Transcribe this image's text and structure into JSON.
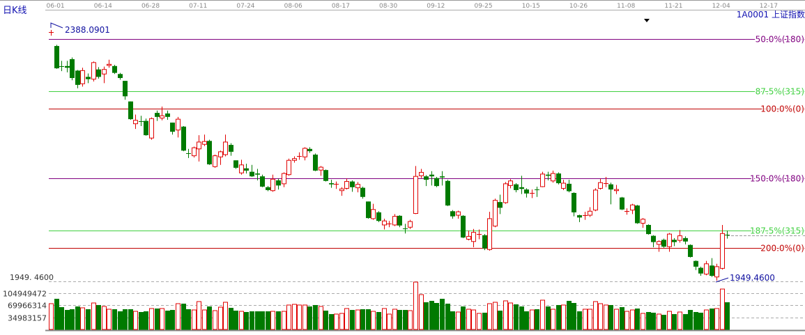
{
  "header": {
    "chart_type_label": "日K线",
    "symbol": "1A0001 上证指数"
  },
  "colors": {
    "up": "#e00000",
    "down": "#007a00",
    "fib_purple": "#800080",
    "fib_green": "#40d040",
    "fib_red": "#c00000",
    "annotation": "#1010a0",
    "axis_text": "#888888"
  },
  "chart_data": {
    "type": "candlestick",
    "x_tick_labels": [
      "06-01",
      "06-14",
      "06-28",
      "07-11",
      "07-24",
      "08-06",
      "08-17",
      "08-30",
      "09-12",
      "09-25",
      "10-15",
      "10-26",
      "11-08",
      "11-21",
      "12-04",
      "12-17"
    ],
    "price_high_label": "2388.0901",
    "price_low_label": "1949.4600",
    "left_axis_price_label": "1949. 4600",
    "volume_axis_labels": [
      "104949472",
      "69966314",
      "34983157"
    ],
    "volume_axis_values": [
      104949472,
      69966314,
      34983157
    ],
    "price_high": 2388.0901,
    "price_low": 1949.46,
    "fib_levels": [
      {
        "label": "50.0%(180)",
        "price": 2372.2,
        "color": "purple"
      },
      {
        "label": "87.5%(315)",
        "price": 2280.9,
        "color": "green"
      },
      {
        "label": "100.0%(0)",
        "price": 2250.4,
        "color": "red"
      },
      {
        "label": "150.0%(180)",
        "price": 2128.6,
        "color": "purple"
      },
      {
        "label": "187.5%(315)",
        "price": 2037.3,
        "color": "green"
      },
      {
        "label": "200.0%(0)",
        "price": 2006.8,
        "color": "red"
      }
    ],
    "ohlc_fields": [
      "open",
      "close",
      "high",
      "low"
    ],
    "candles": [
      [
        2384,
        2385,
        2388.09,
        2378
      ],
      [
        2360,
        2321,
        2362,
        2320
      ],
      [
        2325,
        2325,
        2334,
        2316
      ],
      [
        2325,
        2322,
        2334,
        2314
      ],
      [
        2337,
        2304,
        2340,
        2300
      ],
      [
        2317,
        2292,
        2318,
        2286
      ],
      [
        2294,
        2317,
        2322,
        2289
      ],
      [
        2306,
        2302,
        2312,
        2295
      ],
      [
        2302,
        2331,
        2333,
        2298
      ],
      [
        2319,
        2306,
        2323,
        2303
      ],
      [
        2311,
        2319,
        2324,
        2295
      ],
      [
        2326,
        2328,
        2336,
        2322
      ],
      [
        2325,
        2313,
        2327,
        2311
      ],
      [
        2311,
        2304,
        2313,
        2301
      ],
      [
        2299,
        2272,
        2299,
        2266
      ],
      [
        2263,
        2232,
        2263,
        2231
      ],
      [
        2224,
        2230,
        2240,
        2215
      ],
      [
        2228,
        2228,
        2238,
        2220
      ],
      [
        2229,
        2204,
        2233,
        2203
      ],
      [
        2199,
        2233,
        2235,
        2196
      ],
      [
        2243,
        2236,
        2247,
        2229
      ],
      [
        2234,
        2238,
        2254,
        2230
      ],
      [
        2242,
        2236,
        2247,
        2231
      ],
      [
        2226,
        2210,
        2226,
        2205
      ],
      [
        2213,
        2232,
        2236,
        2200
      ],
      [
        2219,
        2177,
        2220,
        2176
      ],
      [
        2172,
        2172,
        2180,
        2164
      ],
      [
        2168,
        2182,
        2184,
        2165
      ],
      [
        2180,
        2192,
        2204,
        2158
      ],
      [
        2188,
        2193,
        2205,
        2185
      ],
      [
        2194,
        2153,
        2196,
        2152
      ],
      [
        2149,
        2168,
        2170,
        2147
      ],
      [
        2166,
        2175,
        2177,
        2152
      ],
      [
        2170,
        2192,
        2205,
        2167
      ],
      [
        2187,
        2175,
        2190,
        2168
      ],
      [
        2160,
        2147,
        2160,
        2145
      ],
      [
        2138,
        2152,
        2161,
        2135
      ],
      [
        2146,
        2142,
        2154,
        2137
      ],
      [
        2140,
        2132,
        2152,
        2131
      ],
      [
        2137,
        2135,
        2145,
        2125
      ],
      [
        2132,
        2114,
        2135,
        2113
      ],
      [
        2113,
        2108,
        2115,
        2106
      ],
      [
        2107,
        2127,
        2135,
        2105
      ],
      [
        2125,
        2116,
        2128,
        2109
      ],
      [
        2119,
        2137,
        2139,
        2113
      ],
      [
        2135,
        2160,
        2163,
        2133
      ],
      [
        2160,
        2163,
        2167,
        2156
      ],
      [
        2167,
        2168,
        2174,
        2161
      ],
      [
        2166,
        2181,
        2183,
        2160
      ],
      [
        2180,
        2176,
        2183,
        2173
      ],
      [
        2170,
        2142,
        2172,
        2141
      ],
      [
        2143,
        2148,
        2150,
        2133
      ],
      [
        2143,
        2124,
        2144,
        2123
      ],
      [
        2120,
        2118,
        2126,
        2112
      ],
      [
        2118,
        2119,
        2123,
        2110
      ],
      [
        2107,
        2110,
        2113,
        2098
      ],
      [
        2111,
        2123,
        2128,
        2109
      ],
      [
        2123,
        2113,
        2125,
        2105
      ],
      [
        2112,
        2118,
        2122,
        2104
      ],
      [
        2112,
        2096,
        2114,
        2093
      ],
      [
        2088,
        2059,
        2088,
        2058
      ],
      [
        2058,
        2074,
        2084,
        2056
      ],
      [
        2069,
        2054,
        2071,
        2052
      ],
      [
        2047,
        2054,
        2058,
        2039
      ],
      [
        2048,
        2049,
        2054,
        2043
      ],
      [
        2047,
        2062,
        2066,
        2045
      ],
      [
        2063,
        2046,
        2064,
        2043
      ],
      [
        2041,
        2041,
        2049,
        2032
      ],
      [
        2043,
        2053,
        2056,
        2040
      ],
      [
        2067,
        2132,
        2150,
        2066
      ],
      [
        2133,
        2139,
        2145,
        2129
      ],
      [
        2132,
        2126,
        2134,
        2115
      ],
      [
        2135,
        2132,
        2141,
        2116
      ],
      [
        2129,
        2115,
        2131,
        2113
      ],
      [
        2132,
        2130,
        2141,
        2116
      ],
      [
        2124,
        2081,
        2126,
        2080
      ],
      [
        2071,
        2062,
        2073,
        2058
      ],
      [
        2064,
        2070,
        2072,
        2058
      ],
      [
        2063,
        2025,
        2064,
        2024
      ],
      [
        2022,
        2027,
        2037,
        2020
      ],
      [
        2018,
        2034,
        2040,
        2008
      ],
      [
        2030,
        2031,
        2039,
        2022
      ],
      [
        2029,
        2006,
        2031,
        2003
      ],
      [
        2004,
        2058,
        2070,
        2002
      ],
      [
        2045,
        2090,
        2093,
        2043
      ],
      [
        2087,
        2077,
        2100,
        2066
      ],
      [
        2086,
        2119,
        2122,
        2084
      ],
      [
        2116,
        2124,
        2127,
        2111
      ],
      [
        2118,
        2108,
        2120,
        2104
      ],
      [
        2113,
        2110,
        2133,
        2101
      ],
      [
        2109,
        2102,
        2111,
        2095
      ],
      [
        2102,
        2103,
        2109,
        2094
      ],
      [
        2109,
        2109,
        2114,
        2096
      ],
      [
        2114,
        2136,
        2140,
        2113
      ],
      [
        2135,
        2133,
        2140,
        2125
      ],
      [
        2124,
        2137,
        2142,
        2121
      ],
      [
        2137,
        2120,
        2139,
        2118
      ],
      [
        2111,
        2120,
        2126,
        2108
      ],
      [
        2119,
        2106,
        2126,
        2104
      ],
      [
        2103,
        2069,
        2104,
        2062
      ],
      [
        2064,
        2060,
        2065,
        2052
      ],
      [
        2063,
        2064,
        2070,
        2056
      ],
      [
        2064,
        2071,
        2078,
        2061
      ],
      [
        2073,
        2108,
        2111,
        2071
      ],
      [
        2111,
        2121,
        2128,
        2109
      ],
      [
        2119,
        2120,
        2131,
        2113
      ],
      [
        2118,
        2109,
        2121,
        2083
      ],
      [
        2107,
        2109,
        2117,
        2101
      ],
      [
        2095,
        2074,
        2096,
        2073
      ],
      [
        2070,
        2071,
        2076,
        2065
      ],
      [
        2073,
        2082,
        2084,
        2066
      ],
      [
        2081,
        2050,
        2082,
        2049
      ],
      [
        2050,
        2057,
        2059,
        2042
      ],
      [
        2047,
        2031,
        2048,
        2030
      ],
      [
        2028,
        2017,
        2029,
        2008
      ],
      [
        2013,
        2018,
        2020,
        2000
      ],
      [
        2021,
        2009,
        2023,
        2007
      ],
      [
        2009,
        2031,
        2033,
        2000
      ],
      [
        2021,
        2017,
        2024,
        2010
      ],
      [
        2020,
        2028,
        2038,
        2016
      ],
      [
        2024,
        2018,
        2027,
        2013
      ],
      [
        2012,
        1991,
        2013,
        1990
      ],
      [
        1984,
        1974,
        1985,
        1968
      ],
      [
        1972,
        1962,
        1974,
        1958
      ],
      [
        1961,
        1979,
        1984,
        1959
      ],
      [
        1976,
        1958,
        1989,
        1956
      ],
      [
        1956,
        1974,
        1979,
        1949.46
      ],
      [
        1971,
        2032,
        2047,
        1969
      ],
      [
        2030,
        2029,
        2037,
        2023
      ]
    ],
    "volumes": [
      74600000.0,
      88700000.0,
      64500000.0,
      56400000.0,
      58500000.0,
      66500000.0,
      62500000.0,
      58500000.0,
      76600000.0,
      70600000.0,
      66500000.0,
      58500000.0,
      58500000.0,
      52400000.0,
      58500000.0,
      58500000.0,
      52400000.0,
      50400000.0,
      52400000.0,
      60500000.0,
      60500000.0,
      60500000.0,
      54400000.0,
      56400000.0,
      74600000.0,
      74600000.0,
      58500000.0,
      56400000.0,
      80600000.0,
      56400000.0,
      66500000.0,
      54400000.0,
      64500000.0,
      78600000.0,
      62500000.0,
      54400000.0,
      52400000.0,
      50400000.0,
      52400000.0,
      52400000.0,
      52400000.0,
      52400000.0,
      52400000.0,
      52400000.0,
      52400000.0,
      70600000.0,
      72600000.0,
      70600000.0,
      70600000.0,
      66500000.0,
      70600000.0,
      66500000.0,
      54400000.0,
      44400000.0,
      44400000.0,
      46400000.0,
      60500000.0,
      56400000.0,
      56400000.0,
      58500000.0,
      58500000.0,
      52400000.0,
      50400000.0,
      60500000.0,
      44400000.0,
      58500000.0,
      56400000.0,
      56400000.0,
      54400000.0,
      137100000.0,
      100800000.0,
      78600000.0,
      82700000.0,
      76600000.0,
      88700000.0,
      74600000.0,
      52400000.0,
      50400000.0,
      66500000.0,
      58500000.0,
      56400000.0,
      46400000.0,
      48400000.0,
      74600000.0,
      78600000.0,
      54400000.0,
      82700000.0,
      76600000.0,
      72600000.0,
      66500000.0,
      52400000.0,
      56400000.0,
      58500000.0,
      84700000.0,
      66500000.0,
      58500000.0,
      70600000.0,
      70600000.0,
      82700000.0,
      76600000.0,
      52400000.0,
      58500000.0,
      58500000.0,
      80600000.0,
      74600000.0,
      70600000.0,
      70600000.0,
      58500000.0,
      64500000.0,
      52400000.0,
      56400000.0,
      60500000.0,
      46400000.0,
      50400000.0,
      48400000.0,
      44400000.0,
      42300000.0,
      52400000.0,
      44400000.0,
      50400000.0,
      44400000.0,
      56400000.0,
      50400000.0,
      48400000.0,
      56400000.0,
      60500000.0,
      60500000.0,
      116900000.0,
      78600000.0
    ]
  }
}
